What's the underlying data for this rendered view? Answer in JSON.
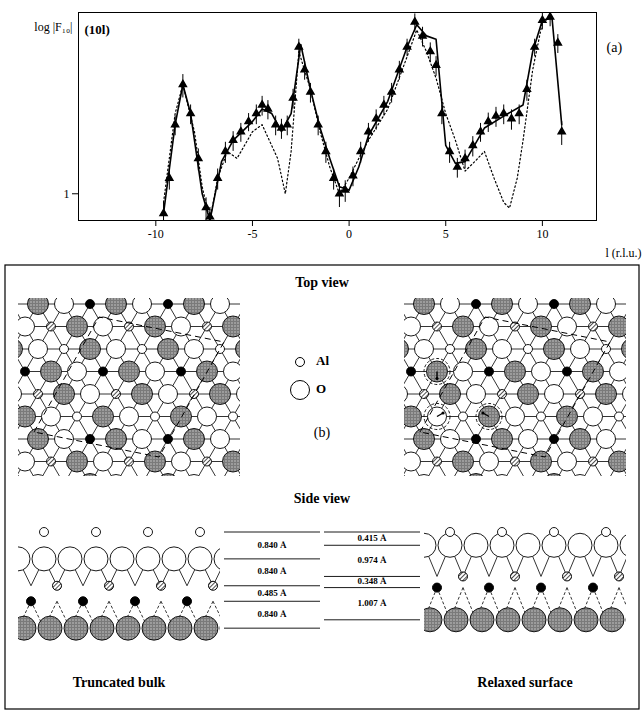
{
  "chart_data": {
    "type": "line",
    "xlabel": "l (r.l.u.)",
    "ylabel": "log |F₁₀|",
    "annotations": [
      "(10l)",
      "(a)"
    ],
    "log": "y",
    "grid": false,
    "xlim": [
      -14,
      12.8
    ],
    "xticks": [
      -10,
      -5,
      0,
      5,
      10
    ],
    "ylim": [
      0.5,
      110
    ],
    "yticks": [
      1
    ],
    "series": [
      {
        "type": "scatter",
        "marker": "triangle",
        "color": "#000000",
        "x": [
          -9.6,
          -9.3,
          -9.0,
          -8.6,
          -8.2,
          -7.8,
          -7.4,
          -7.2,
          -6.8,
          -6.4,
          -6.0,
          -5.6,
          -5.2,
          -4.8,
          -4.5,
          -4.2,
          -3.8,
          -3.5,
          -3.2,
          -2.9,
          -2.6,
          -2.3,
          -2.0,
          -1.6,
          -1.2,
          -0.8,
          -0.5,
          -0.2,
          0.2,
          0.6,
          1.0,
          1.4,
          1.8,
          2.2,
          2.6,
          3.0,
          3.4,
          3.8,
          4.2,
          4.5,
          4.8,
          5.2,
          5.6,
          6.0,
          6.4,
          6.8,
          7.2,
          7.6,
          8.0,
          8.4,
          8.8,
          9.2,
          9.6,
          10.0,
          10.4,
          10.8,
          11.0
        ],
        "values": [
          0.6,
          1.5,
          6,
          17,
          8,
          2.5,
          0.7,
          0.55,
          1.5,
          3,
          4,
          5,
          6.5,
          8,
          10,
          9,
          6,
          5.5,
          6,
          12,
          45,
          25,
          14,
          6,
          3,
          1.5,
          1.0,
          1.1,
          1.6,
          3,
          5,
          7,
          10,
          14,
          25,
          45,
          86,
          60,
          40,
          28,
          8,
          3,
          2.0,
          2.5,
          3.5,
          5,
          6.5,
          7.5,
          8,
          7,
          8,
          15,
          45,
          90,
          98,
          50,
          5
        ],
        "errors": [
          0.2,
          0.4,
          1.5,
          5,
          2,
          0.7,
          0.2,
          0.15,
          0.4,
          0.8,
          1,
          1.2,
          1.5,
          2,
          2.5,
          2.2,
          1.5,
          1.4,
          1.5,
          3,
          10,
          6,
          3.5,
          1.5,
          0.8,
          0.4,
          0.3,
          0.3,
          0.4,
          0.8,
          1.2,
          1.8,
          2.5,
          3.5,
          6,
          10,
          20,
          15,
          10,
          7,
          2,
          0.8,
          0.5,
          0.6,
          0.9,
          1.2,
          1.6,
          1.9,
          2,
          1.8,
          2,
          4,
          10,
          20,
          22,
          12,
          1.5
        ]
      },
      {
        "type": "line",
        "line_style": "solid",
        "color": "#000000",
        "x": [
          -9.6,
          -9.0,
          -8.6,
          -8.2,
          -7.6,
          -7.2,
          -6.6,
          -6.0,
          -5.0,
          -4.5,
          -4.0,
          -3.5,
          -3.0,
          -2.5,
          -2.0,
          -1.5,
          -1.0,
          -0.5,
          0.0,
          0.5,
          1.0,
          2.0,
          3.0,
          3.5,
          4.0,
          4.5,
          5.0,
          5.5,
          6.0,
          7.0,
          8.0,
          9.0,
          9.5,
          10.0,
          10.5,
          11.0
        ],
        "values": [
          0.6,
          6,
          17,
          8,
          1,
          0.5,
          2.3,
          4,
          6.5,
          9,
          8,
          5,
          8,
          48,
          15,
          5.5,
          2.5,
          1.2,
          1.1,
          2,
          4.5,
          11,
          45,
          80,
          60,
          55,
          3.5,
          2.2,
          2.3,
          5.5,
          7.5,
          10,
          40,
          90,
          95,
          6
        ]
      },
      {
        "type": "line",
        "line_style": "dotted",
        "color": "#000000",
        "x": [
          -9.6,
          -9.0,
          -8.6,
          -8.0,
          -7.6,
          -7.2,
          -6.8,
          -6.3,
          -5.8,
          -5.0,
          -4.5,
          -3.7,
          -3.3,
          -3.0,
          -2.6,
          -2.0,
          -1.5,
          -1.0,
          -0.5,
          0.0,
          0.5,
          1.0,
          2.0,
          3.0,
          3.5,
          4.0,
          4.5,
          5.0,
          5.5,
          6.0,
          6.5,
          7.0,
          7.5,
          8.0,
          8.3,
          8.7,
          9.0,
          9.5,
          10.0,
          10.5
        ],
        "values": [
          0.8,
          8,
          17,
          5,
          1.2,
          0.5,
          1.5,
          3,
          2.5,
          5,
          6,
          2.5,
          1.0,
          3,
          40,
          15,
          5,
          2,
          1,
          1.5,
          2.5,
          4,
          9,
          35,
          70,
          40,
          20,
          8,
          4,
          1.8,
          2.3,
          3,
          1.5,
          0.8,
          0.69,
          1.5,
          4,
          25,
          85,
          100
        ]
      }
    ]
  },
  "diagram": {
    "panel_label": "(b)",
    "top_view_title": "Top view",
    "side_view_title": "Side view",
    "key": [
      "Al",
      "O"
    ],
    "panels": [
      {
        "caption": "Truncated bulk",
        "spacings": [
          {
            "value": 0.84,
            "label": "0.840 Å"
          },
          {
            "value": 0.84,
            "label": "0.840 Å"
          },
          {
            "value": 0.485,
            "label": "0.485 Å"
          },
          {
            "value": 0.84,
            "label": "0.840 Å"
          }
        ]
      },
      {
        "caption": "Relaxed surface",
        "spacings": [
          {
            "value": 0.415,
            "label": "0.415 Å"
          },
          {
            "value": 0.974,
            "label": "0.974 Å"
          },
          {
            "value": 0.348,
            "label": "0.348 Å"
          },
          {
            "value": 1.007,
            "label": "1.007 Å"
          }
        ]
      }
    ]
  }
}
